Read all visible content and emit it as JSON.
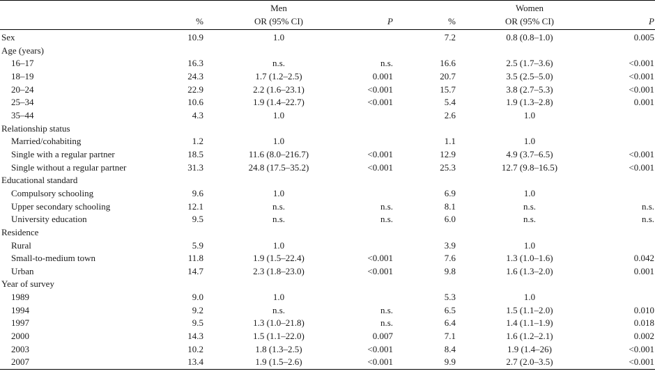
{
  "header": {
    "men": "Men",
    "women": "Women",
    "pct": "%",
    "or": "OR (95% CI)",
    "p": "P"
  },
  "rows": [
    {
      "label": "Sex",
      "indent": false,
      "men_pct": "10.9",
      "men_or": "1.0",
      "men_p": "",
      "women_pct": "7.2",
      "women_or": "0.8 (0.8–1.0)",
      "women_p": "0.005"
    },
    {
      "label": "Age (years)",
      "indent": false,
      "men_pct": "",
      "men_or": "",
      "men_p": "",
      "women_pct": "",
      "women_or": "",
      "women_p": ""
    },
    {
      "label": "16–17",
      "indent": true,
      "men_pct": "16.3",
      "men_or": "n.s.",
      "men_p": "n.s.",
      "women_pct": "16.6",
      "women_or": "2.5 (1.7–3.6)",
      "women_p": "<0.001"
    },
    {
      "label": "18–19",
      "indent": true,
      "men_pct": "24.3",
      "men_or": "1.7 (1.2–2.5)",
      "men_p": "0.001",
      "women_pct": "20.7",
      "women_or": "3.5 (2.5–5.0)",
      "women_p": "<0.001"
    },
    {
      "label": "20–24",
      "indent": true,
      "men_pct": "22.9",
      "men_or": "2.2 (1.6–23.1)",
      "men_p": "<0.001",
      "women_pct": "15.7",
      "women_or": "3.8 (2.7–5.3)",
      "women_p": "<0.001"
    },
    {
      "label": "25–34",
      "indent": true,
      "men_pct": "10.6",
      "men_or": "1.9 (1.4–22.7)",
      "men_p": "<0.001",
      "women_pct": "5.4",
      "women_or": "1.9 (1.3–2.8)",
      "women_p": "0.001"
    },
    {
      "label": "35–44",
      "indent": true,
      "men_pct": "4.3",
      "men_or": "1.0",
      "men_p": "",
      "women_pct": "2.6",
      "women_or": "1.0",
      "women_p": ""
    },
    {
      "label": "Relationship status",
      "indent": false,
      "men_pct": "",
      "men_or": "",
      "men_p": "",
      "women_pct": "",
      "women_or": "",
      "women_p": ""
    },
    {
      "label": "Married/cohabiting",
      "indent": true,
      "men_pct": "1.2",
      "men_or": "1.0",
      "men_p": "",
      "women_pct": "1.1",
      "women_or": "1.0",
      "women_p": ""
    },
    {
      "label": "Single with a regular partner",
      "indent": true,
      "men_pct": "18.5",
      "men_or": "11.6 (8.0–216.7)",
      "men_p": "<0.001",
      "women_pct": "12.9",
      "women_or": "4.9 (3.7–6.5)",
      "women_p": "<0.001"
    },
    {
      "label": "Single without a regular partner",
      "indent": true,
      "men_pct": "31.3",
      "men_or": "24.8 (17.5–35.2)",
      "men_p": "<0.001",
      "women_pct": "25.3",
      "women_or": "12.7 (9.8–16.5)",
      "women_p": "<0.001"
    },
    {
      "label": "Educational standard",
      "indent": false,
      "men_pct": "",
      "men_or": "",
      "men_p": "",
      "women_pct": "",
      "women_or": "",
      "women_p": ""
    },
    {
      "label": "Compulsory schooling",
      "indent": true,
      "men_pct": "9.6",
      "men_or": "1.0",
      "men_p": "",
      "women_pct": "6.9",
      "women_or": "1.0",
      "women_p": ""
    },
    {
      "label": "Upper secondary schooling",
      "indent": true,
      "men_pct": "12.1",
      "men_or": "n.s.",
      "men_p": "n.s.",
      "women_pct": "8.1",
      "women_or": "n.s.",
      "women_p": "n.s."
    },
    {
      "label": "University education",
      "indent": true,
      "men_pct": "9.5",
      "men_or": "n.s.",
      "men_p": "n.s.",
      "women_pct": "6.0",
      "women_or": "n.s.",
      "women_p": "n.s."
    },
    {
      "label": "Residence",
      "indent": false,
      "men_pct": "",
      "men_or": "",
      "men_p": "",
      "women_pct": "",
      "women_or": "",
      "women_p": ""
    },
    {
      "label": "Rural",
      "indent": true,
      "men_pct": "5.9",
      "men_or": "1.0",
      "men_p": "",
      "women_pct": "3.9",
      "women_or": "1.0",
      "women_p": ""
    },
    {
      "label": "Small-to-medium town",
      "indent": true,
      "men_pct": "11.8",
      "men_or": "1.9 (1.5–22.4)",
      "men_p": "<0.001",
      "women_pct": "7.6",
      "women_or": "1.3 (1.0–1.6)",
      "women_p": "0.042"
    },
    {
      "label": "Urban",
      "indent": true,
      "men_pct": "14.7",
      "men_or": "2.3 (1.8–23.0)",
      "men_p": "<0.001",
      "women_pct": "9.8",
      "women_or": "1.6 (1.3–2.0)",
      "women_p": "0.001"
    },
    {
      "label": "Year of survey",
      "indent": false,
      "men_pct": "",
      "men_or": "",
      "men_p": "",
      "women_pct": "",
      "women_or": "",
      "women_p": ""
    },
    {
      "label": "1989",
      "indent": true,
      "men_pct": "9.0",
      "men_or": "1.0",
      "men_p": "",
      "women_pct": "5.3",
      "women_or": "1.0",
      "women_p": ""
    },
    {
      "label": "1994",
      "indent": true,
      "men_pct": "9.2",
      "men_or": "n.s.",
      "men_p": "n.s.",
      "women_pct": "6.5",
      "women_or": "1.5 (1.1–2.0)",
      "women_p": "0.010"
    },
    {
      "label": "1997",
      "indent": true,
      "men_pct": "9.5",
      "men_or": "1.3 (1.0–21.8)",
      "men_p": "n.s.",
      "women_pct": "6.4",
      "women_or": "1.4 (1.1–1.9)",
      "women_p": "0.018"
    },
    {
      "label": "2000",
      "indent": true,
      "men_pct": "14.3",
      "men_or": "1.5 (1.1–22.0)",
      "men_p": "0.007",
      "women_pct": "7.1",
      "women_or": "1.6 (1.2–2.1)",
      "women_p": "0.002"
    },
    {
      "label": "2003",
      "indent": true,
      "men_pct": "10.2",
      "men_or": "1.8 (1.3–2.5)",
      "men_p": "<0.001",
      "women_pct": "8.4",
      "women_or": "1.9 (1.4–26)",
      "women_p": "<0.001"
    },
    {
      "label": "2007",
      "indent": true,
      "men_pct": "13.4",
      "men_or": "1.9 (1.5–2.6)",
      "men_p": "<0.001",
      "women_pct": "9.9",
      "women_or": "2.7 (2.0–3.5)",
      "women_p": "<0.001"
    }
  ]
}
